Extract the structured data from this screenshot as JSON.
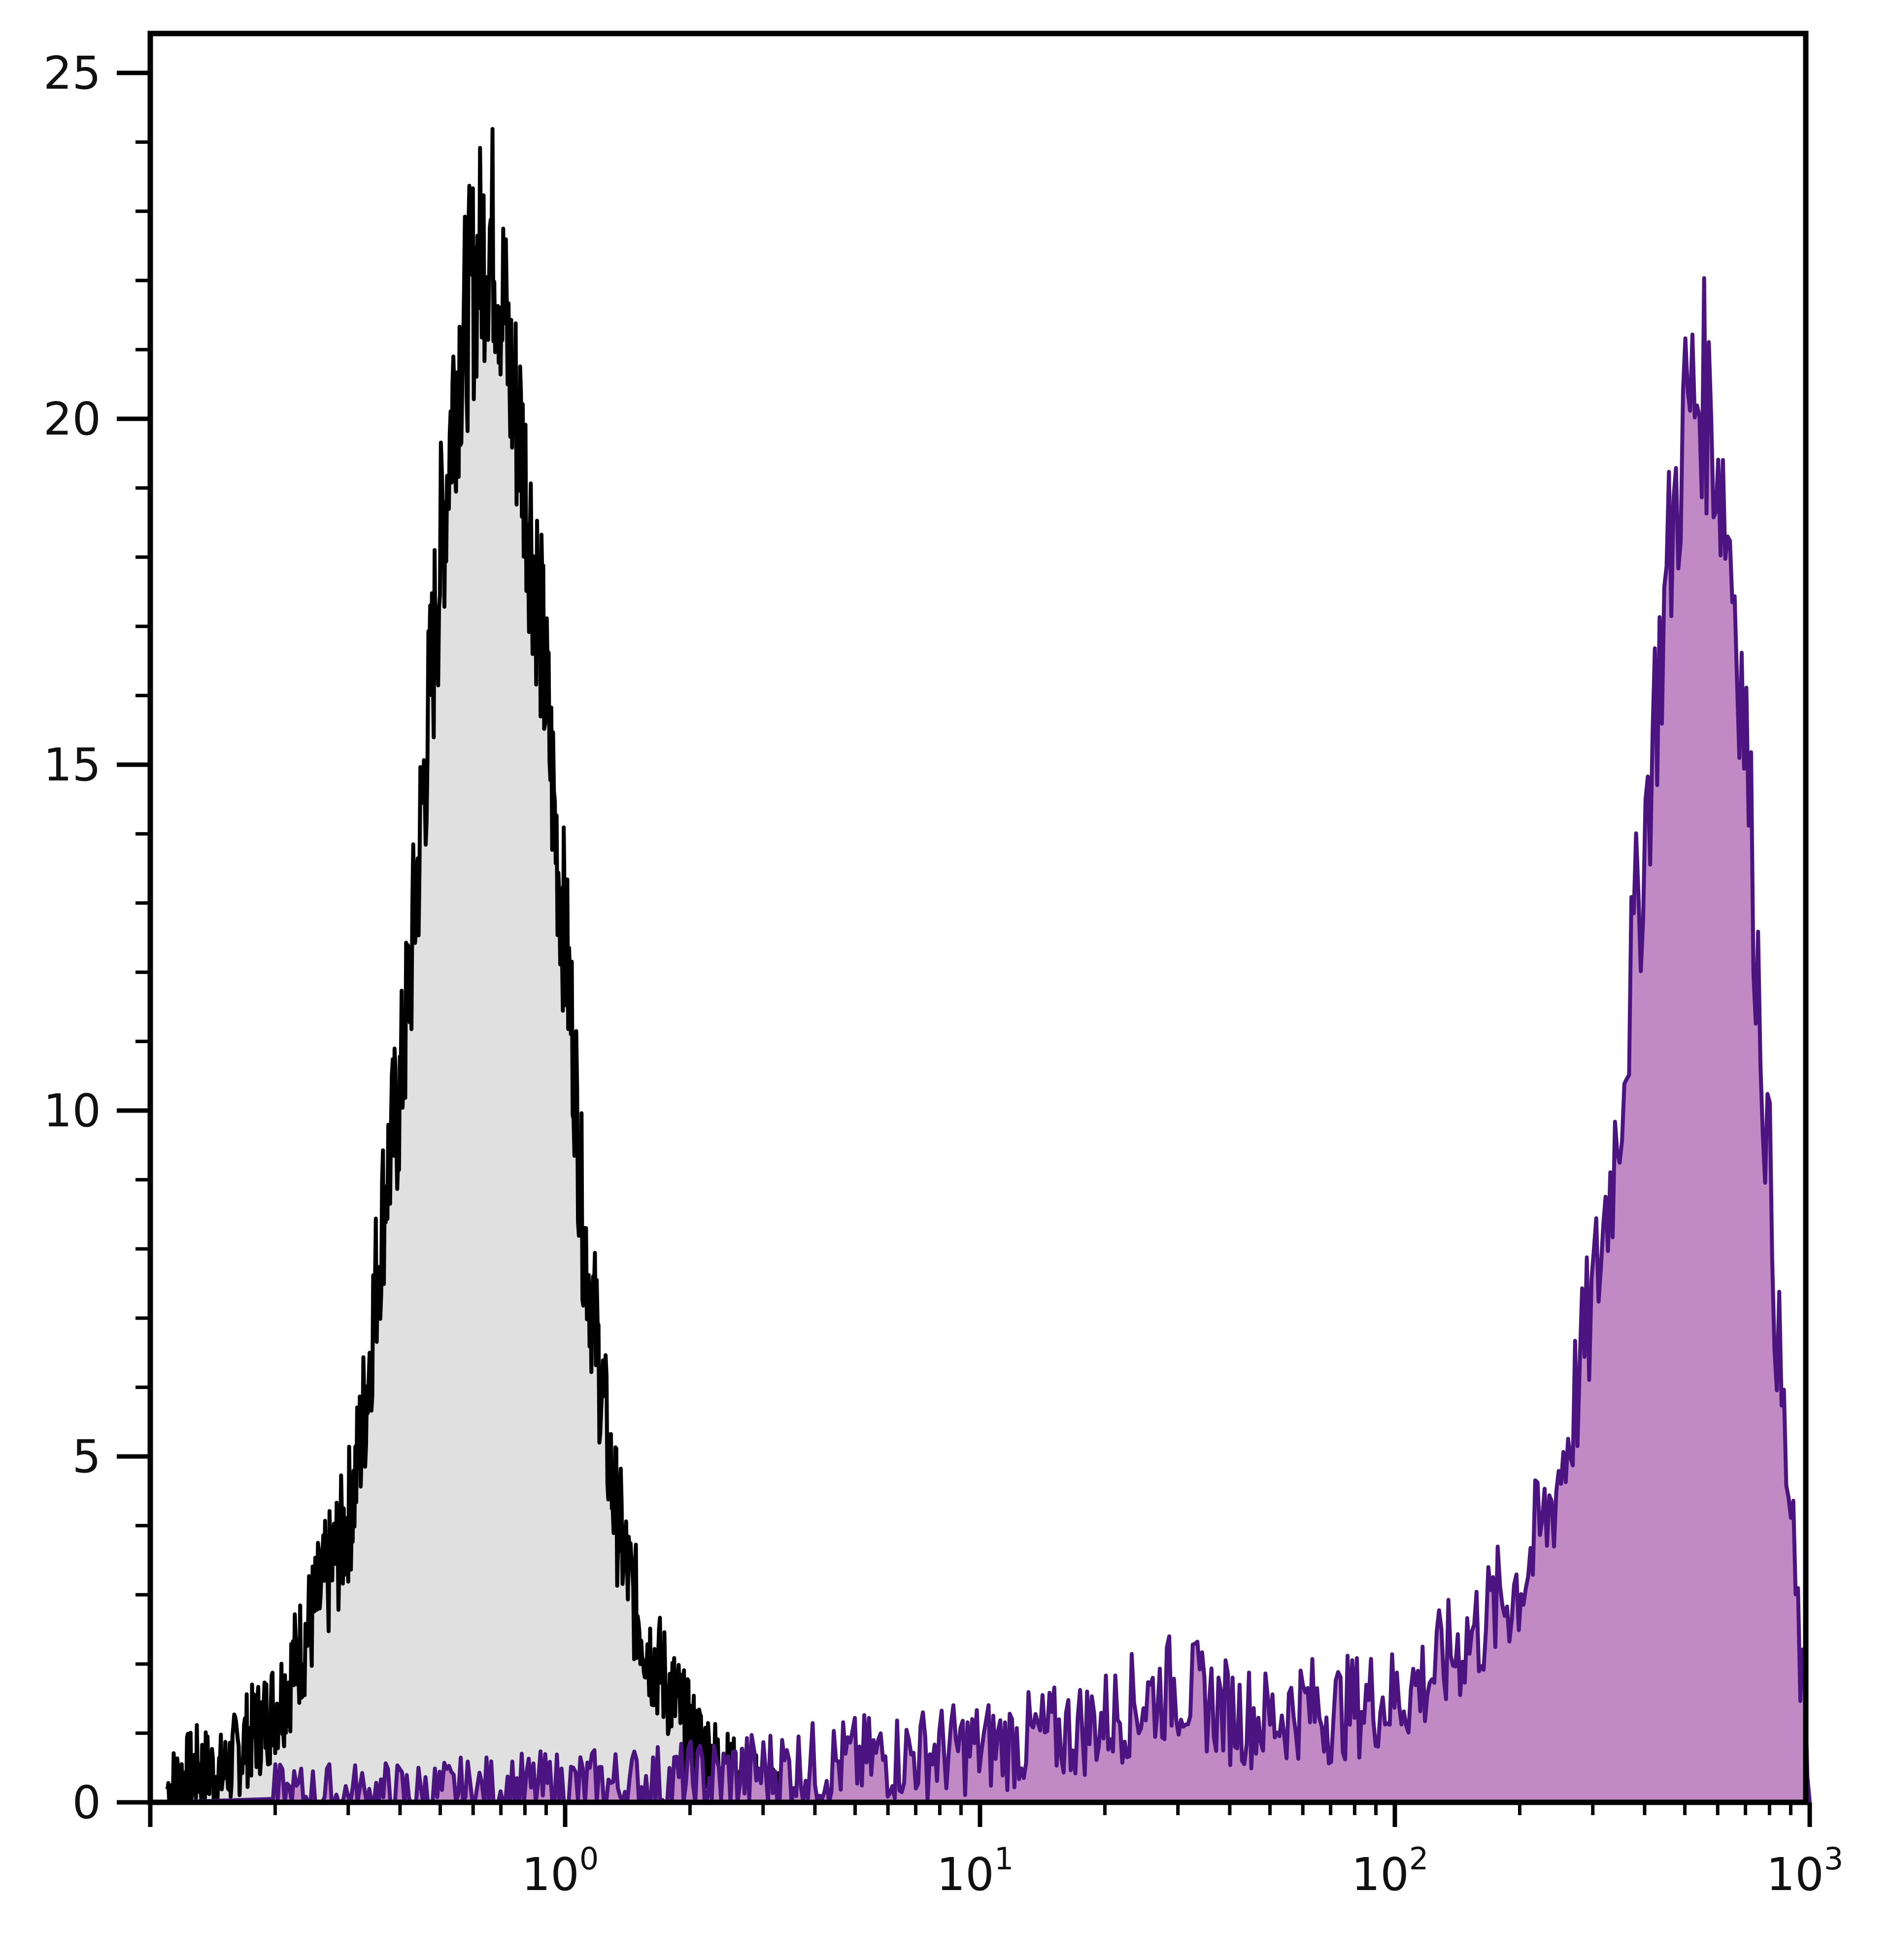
{
  "chart_data": {
    "type": "area",
    "title": "",
    "xlabel": "",
    "ylabel": "",
    "x_scale": "log",
    "xlim": [
      0.1,
      1000
    ],
    "ylim": [
      0,
      25
    ],
    "grid": false,
    "x_ticks": [
      {
        "value": 1,
        "base": "10",
        "exp": "0"
      },
      {
        "value": 10,
        "base": "10",
        "exp": "1"
      },
      {
        "value": 100,
        "base": "10",
        "exp": "2"
      },
      {
        "value": 1000,
        "base": "10",
        "exp": "3"
      }
    ],
    "y_ticks": [
      {
        "value": 0,
        "label": "0"
      },
      {
        "value": 5,
        "label": "5"
      },
      {
        "value": 10,
        "label": "10"
      },
      {
        "value": 15,
        "label": "15"
      },
      {
        "value": 20,
        "label": "20"
      },
      {
        "value": 25,
        "label": "25"
      }
    ],
    "series": [
      {
        "fill": "#e0e0e0",
        "stroke": "#000000",
        "x": [
          0.11,
          0.13,
          0.15,
          0.17,
          0.19,
          0.21,
          0.23,
          0.25,
          0.27,
          0.29,
          0.31,
          0.33,
          0.35,
          0.37,
          0.4,
          0.43,
          0.46,
          0.5,
          0.54,
          0.58,
          0.62,
          0.66,
          0.7,
          0.74,
          0.78,
          0.82,
          0.86,
          0.9,
          0.95,
          1.0,
          1.05,
          1.1,
          1.2,
          1.3,
          1.45,
          1.6,
          1.8,
          2.0,
          2.3,
          2.6,
          3.0,
          3.5
        ],
        "values": [
          0.2,
          0.5,
          0.4,
          0.9,
          1.2,
          1.6,
          2.2,
          2.8,
          3.3,
          3.8,
          4.5,
          5.8,
          7.5,
          9.0,
          10.2,
          12.5,
          15.0,
          18.0,
          20.5,
          21.5,
          22.3,
          22.8,
          22.0,
          20.5,
          19.8,
          18.5,
          17.5,
          16.0,
          14.0,
          12.5,
          10.8,
          8.5,
          6.5,
          4.5,
          3.0,
          2.2,
          1.6,
          1.0,
          0.6,
          0.3,
          0.15,
          0.0
        ]
      },
      {
        "fill": "#c18ac4",
        "stroke": "#4b1480",
        "x": [
          0.11,
          0.2,
          0.5,
          1.0,
          2.0,
          3.0,
          5.0,
          7.0,
          10,
          13,
          16,
          20,
          25,
          30,
          40,
          50,
          60,
          70,
          80,
          90,
          100,
          120,
          140,
          170,
          200,
          230,
          260,
          300,
          340,
          380,
          420,
          460,
          500,
          550,
          600,
          650,
          700,
          750,
          800,
          850,
          900,
          950,
          1000
        ],
        "values": [
          0.0,
          0.05,
          0.1,
          0.2,
          0.3,
          0.45,
          0.6,
          0.7,
          0.8,
          0.9,
          1.0,
          1.2,
          1.5,
          1.7,
          1.3,
          1.2,
          1.4,
          1.3,
          1.4,
          1.5,
          1.5,
          1.8,
          2.2,
          2.7,
          3.2,
          4.0,
          5.2,
          7.2,
          9.5,
          12.5,
          15.5,
          18.0,
          20.0,
          20.5,
          19.5,
          18.0,
          15.5,
          12.0,
          9.0,
          6.0,
          4.0,
          2.0,
          0.0
        ]
      }
    ]
  }
}
